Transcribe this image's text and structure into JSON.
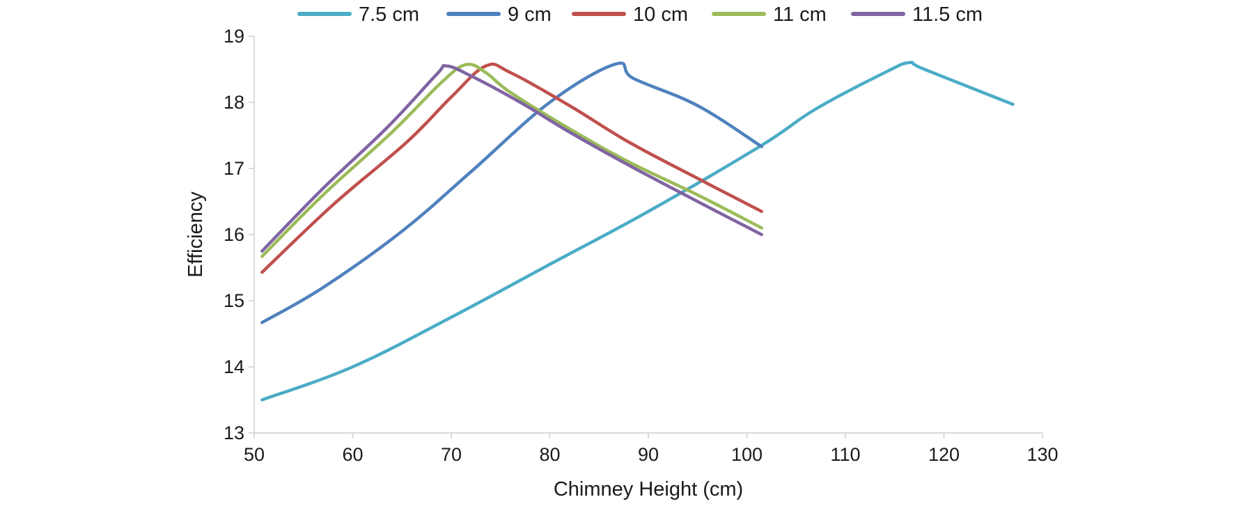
{
  "chart_data": {
    "type": "line",
    "title": "",
    "xlabel": "Chimney Height (cm)",
    "ylabel": "Efficiency",
    "xlim": [
      50,
      130
    ],
    "ylim": [
      13,
      19
    ],
    "xticks": [
      50,
      60,
      70,
      80,
      90,
      100,
      110,
      120,
      130
    ],
    "yticks": [
      13,
      14,
      15,
      16,
      17,
      18,
      19
    ],
    "grid": false,
    "legend_position": "top",
    "series": [
      {
        "name": "7.5 cm",
        "color": "#4BACC6",
        "points": [
          [
            50.8,
            13.5
          ],
          [
            60,
            14.0
          ],
          [
            70,
            14.75
          ],
          [
            80,
            15.55
          ],
          [
            90,
            16.35
          ],
          [
            101.5,
            17.35
          ],
          [
            107,
            17.9
          ],
          [
            114,
            18.45
          ],
          [
            116.5,
            18.6
          ],
          [
            118,
            18.5
          ],
          [
            127,
            17.97
          ]
        ]
      },
      {
        "name": "9 cm",
        "color": "#4F81BD",
        "points": [
          [
            50.8,
            14.67
          ],
          [
            57,
            15.2
          ],
          [
            65,
            16.05
          ],
          [
            72,
            16.95
          ],
          [
            80,
            18.0
          ],
          [
            86.7,
            18.58
          ],
          [
            88.5,
            18.36
          ],
          [
            95,
            17.95
          ],
          [
            101.5,
            17.33
          ]
        ]
      },
      {
        "name": "10 cm",
        "color": "#C0504D",
        "points": [
          [
            50.8,
            15.43
          ],
          [
            58,
            16.45
          ],
          [
            65.5,
            17.4
          ],
          [
            70,
            18.08
          ],
          [
            73.5,
            18.55
          ],
          [
            76,
            18.45
          ],
          [
            82,
            17.95
          ],
          [
            88,
            17.4
          ],
          [
            95,
            16.85
          ],
          [
            101.5,
            16.35
          ]
        ]
      },
      {
        "name": "11 cm",
        "color": "#9BBB59",
        "points": [
          [
            50.8,
            15.67
          ],
          [
            57,
            16.6
          ],
          [
            64,
            17.55
          ],
          [
            69,
            18.3
          ],
          [
            71.5,
            18.57
          ],
          [
            73.5,
            18.45
          ],
          [
            76,
            18.15
          ],
          [
            82,
            17.6
          ],
          [
            88,
            17.1
          ],
          [
            95,
            16.6
          ],
          [
            101.5,
            16.1
          ]
        ]
      },
      {
        "name": "11.5 cm",
        "color": "#8064A2",
        "points": [
          [
            50.8,
            15.75
          ],
          [
            57,
            16.7
          ],
          [
            63.5,
            17.62
          ],
          [
            68.5,
            18.42
          ],
          [
            69.5,
            18.55
          ],
          [
            72,
            18.4
          ],
          [
            77,
            18.0
          ],
          [
            82,
            17.55
          ],
          [
            88,
            17.05
          ],
          [
            95,
            16.5
          ],
          [
            101.5,
            16.0
          ]
        ]
      }
    ]
  }
}
